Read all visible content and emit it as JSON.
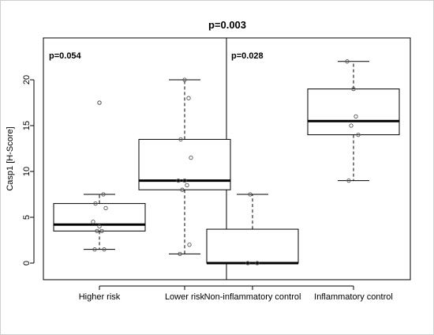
{
  "chart_data": {
    "type": "boxplot",
    "title": "p=0.003",
    "ylabel": "Casp1 [H-Score]",
    "ylim": [
      -2,
      23
    ],
    "yticks": [
      0,
      5,
      10,
      15,
      20
    ],
    "panels": [
      {
        "annotation": "p=0.054",
        "groups": [
          "Higher risk",
          "Lower risk"
        ]
      },
      {
        "annotation": "p=0.028",
        "groups": [
          "Non-inflammatory control",
          "Inflammatory control"
        ]
      }
    ],
    "groups": [
      {
        "name": "Higher risk",
        "whisker_low": 1.5,
        "q1": 3.5,
        "median": 4.2,
        "q3": 6.5,
        "whisker_high": 7.5,
        "outliers": [
          17.5
        ],
        "points": [
          1.5,
          1.5,
          3.5,
          3.5,
          4.0,
          4.5,
          6.0,
          6.5,
          7.5,
          17.5
        ]
      },
      {
        "name": "Lower risk",
        "whisker_low": 1.0,
        "q1": 8.0,
        "median": 9.0,
        "q3": 13.5,
        "whisker_high": 20.0,
        "outliers": [],
        "points": [
          1.0,
          2.0,
          8.0,
          8.5,
          9.0,
          9.0,
          11.5,
          13.5,
          18.0,
          20.0
        ]
      },
      {
        "name": "Non-inflammatory control",
        "whisker_low": 0.0,
        "q1": 0.0,
        "median": 0.0,
        "q3": 3.7,
        "whisker_high": 7.5,
        "outliers": [],
        "points": [
          0.0,
          0.0,
          7.5
        ]
      },
      {
        "name": "Inflammatory control",
        "whisker_low": 9.0,
        "q1": 14.0,
        "median": 15.5,
        "q3": 19.0,
        "whisker_high": 22.0,
        "outliers": [],
        "points": [
          9.0,
          14.0,
          15.0,
          16.0,
          19.0,
          22.0
        ]
      }
    ]
  }
}
